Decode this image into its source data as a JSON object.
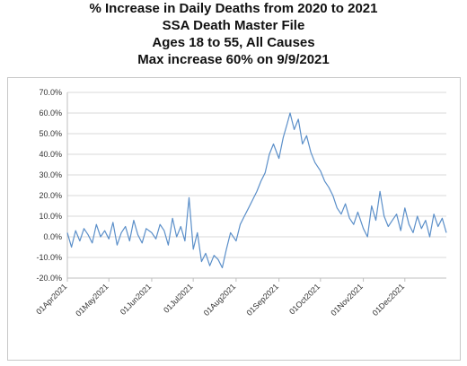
{
  "title_lines": [
    "% Increase in Daily Deaths from 2020 to 2021",
    "SSA Death Master File",
    "Ages 18 to 55, All Causes",
    "Max increase 60% on 9/9/2021"
  ],
  "chart_data": {
    "type": "line",
    "title": "% Increase in Daily Deaths from 2020 to 2021",
    "subtitle": "SSA Death Master File / Ages 18 to 55, All Causes / Max increase 60% on 9/9/2021",
    "xlabel": "",
    "ylabel": "",
    "ylim": [
      -20,
      70
    ],
    "yticks": [
      -20,
      -10,
      0,
      10,
      20,
      30,
      40,
      50,
      60,
      70
    ],
    "ytick_labels": [
      "-20.0%",
      "-10.0%",
      "0.0%",
      "10.0%",
      "20.0%",
      "30.0%",
      "40.0%",
      "50.0%",
      "60.0%",
      "70.0%"
    ],
    "xlim": [
      "2021-04-01",
      "2021-12-31"
    ],
    "xticks": [
      "2021-04-01",
      "2021-05-01",
      "2021-06-01",
      "2021-07-01",
      "2021-08-01",
      "2021-09-01",
      "2021-10-01",
      "2021-11-01",
      "2021-12-01"
    ],
    "xtick_labels": [
      "01Apr2021",
      "01May2021",
      "01Jun2021",
      "01Jul2021",
      "01Aug2021",
      "01Sep2021",
      "01Oct2021",
      "01Nov2021",
      "01Dec2021"
    ],
    "grid": "horizontal",
    "line_color": "#5b8fc9",
    "series": [
      {
        "x": [
          "2021-04-01",
          "2021-04-04",
          "2021-04-07",
          "2021-04-10",
          "2021-04-13",
          "2021-04-16",
          "2021-04-19",
          "2021-04-22",
          "2021-04-25",
          "2021-04-28",
          "2021-05-01",
          "2021-05-04",
          "2021-05-07",
          "2021-05-10",
          "2021-05-13",
          "2021-05-16",
          "2021-05-19",
          "2021-05-22",
          "2021-05-25",
          "2021-05-28",
          "2021-06-01",
          "2021-06-04",
          "2021-06-07",
          "2021-06-10",
          "2021-06-13",
          "2021-06-16",
          "2021-06-19",
          "2021-06-22",
          "2021-06-25",
          "2021-06-28",
          "2021-07-01",
          "2021-07-04",
          "2021-07-07",
          "2021-07-10",
          "2021-07-13",
          "2021-07-16",
          "2021-07-19",
          "2021-07-22",
          "2021-07-25",
          "2021-07-28",
          "2021-08-01",
          "2021-08-04",
          "2021-08-07",
          "2021-08-10",
          "2021-08-13",
          "2021-08-16",
          "2021-08-19",
          "2021-08-22",
          "2021-08-25",
          "2021-08-28",
          "2021-09-01",
          "2021-09-04",
          "2021-09-07",
          "2021-09-09",
          "2021-09-12",
          "2021-09-15",
          "2021-09-18",
          "2021-09-21",
          "2021-09-24",
          "2021-09-27",
          "2021-10-01",
          "2021-10-04",
          "2021-10-07",
          "2021-10-10",
          "2021-10-13",
          "2021-10-16",
          "2021-10-19",
          "2021-10-22",
          "2021-10-25",
          "2021-10-28",
          "2021-11-01",
          "2021-11-04",
          "2021-11-07",
          "2021-11-10",
          "2021-11-13",
          "2021-11-16",
          "2021-11-19",
          "2021-11-22",
          "2021-11-25",
          "2021-11-28",
          "2021-12-01",
          "2021-12-04",
          "2021-12-07",
          "2021-12-10",
          "2021-12-13",
          "2021-12-16",
          "2021-12-19",
          "2021-12-22",
          "2021-12-25",
          "2021-12-28",
          "2021-12-31"
        ],
        "y": [
          2,
          -5,
          3,
          -2,
          4,
          1,
          -3,
          6,
          0,
          3,
          -1,
          7,
          -4,
          2,
          5,
          -2,
          8,
          1,
          -3,
          4,
          2,
          -1,
          6,
          3,
          -4,
          9,
          0,
          5,
          -2,
          19,
          -6,
          2,
          -12,
          -8,
          -14,
          -9,
          -11,
          -15,
          -6,
          2,
          -2,
          6,
          10,
          14,
          18,
          22,
          27,
          31,
          40,
          45,
          38,
          48,
          55,
          60,
          52,
          57,
          45,
          49,
          41,
          36,
          32,
          27,
          24,
          20,
          14,
          11,
          16,
          9,
          6,
          12,
          4,
          0,
          15,
          8,
          22,
          10,
          5,
          8,
          11,
          3,
          14,
          6,
          2,
          10,
          4,
          8,
          0,
          11,
          5,
          9,
          2
        ]
      }
    ]
  }
}
